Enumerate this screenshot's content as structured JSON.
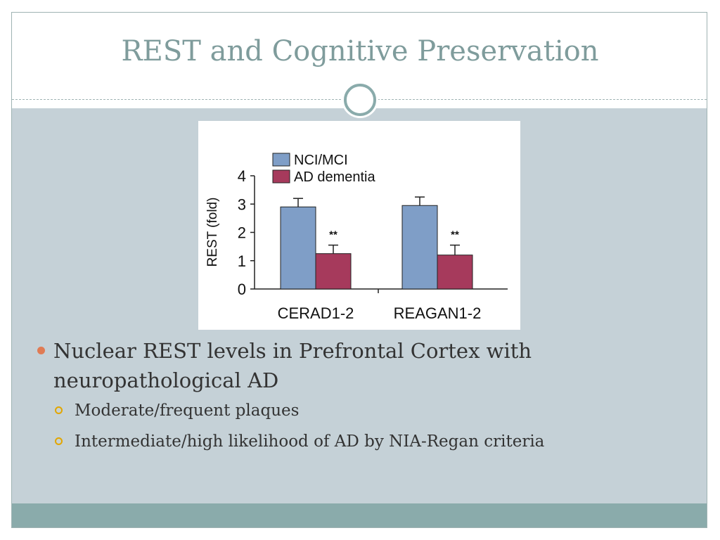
{
  "slide": {
    "title": "REST and Cognitive Preservation",
    "bullets": [
      {
        "text": "Nuclear REST levels in Prefrontal Cortex with neuropathological AD",
        "sub": [
          "Moderate/frequent plaques",
          "Intermediate/high likelihood of AD by NIA-Regan criteria"
        ]
      }
    ]
  },
  "colors": {
    "title": "#7f9c9c",
    "content_bg": "#c5d1d7",
    "footer_bar": "#8aabab",
    "bullet_dot": "#e07b54",
    "sub_bullet_ring": "#e2a600",
    "series_nci": "#7f9ec7",
    "series_ad": "#a63a5c"
  },
  "chart_data": {
    "type": "bar",
    "categories": [
      "CERAD1-2",
      "REAGAN1-2"
    ],
    "series": [
      {
        "name": "NCI/MCI",
        "values": [
          2.9,
          2.95
        ],
        "errors": [
          0.3,
          0.3
        ]
      },
      {
        "name": "AD dementia",
        "values": [
          1.25,
          1.2
        ],
        "errors": [
          0.3,
          0.35
        ]
      }
    ],
    "annotations": [
      "**",
      "**"
    ],
    "ylabel": "REST (fold)",
    "xlabel": "",
    "ylim": [
      0,
      4
    ],
    "yticks": [
      "0",
      "1",
      "2",
      "3",
      "4"
    ],
    "legend": "top-left",
    "grid": false
  }
}
